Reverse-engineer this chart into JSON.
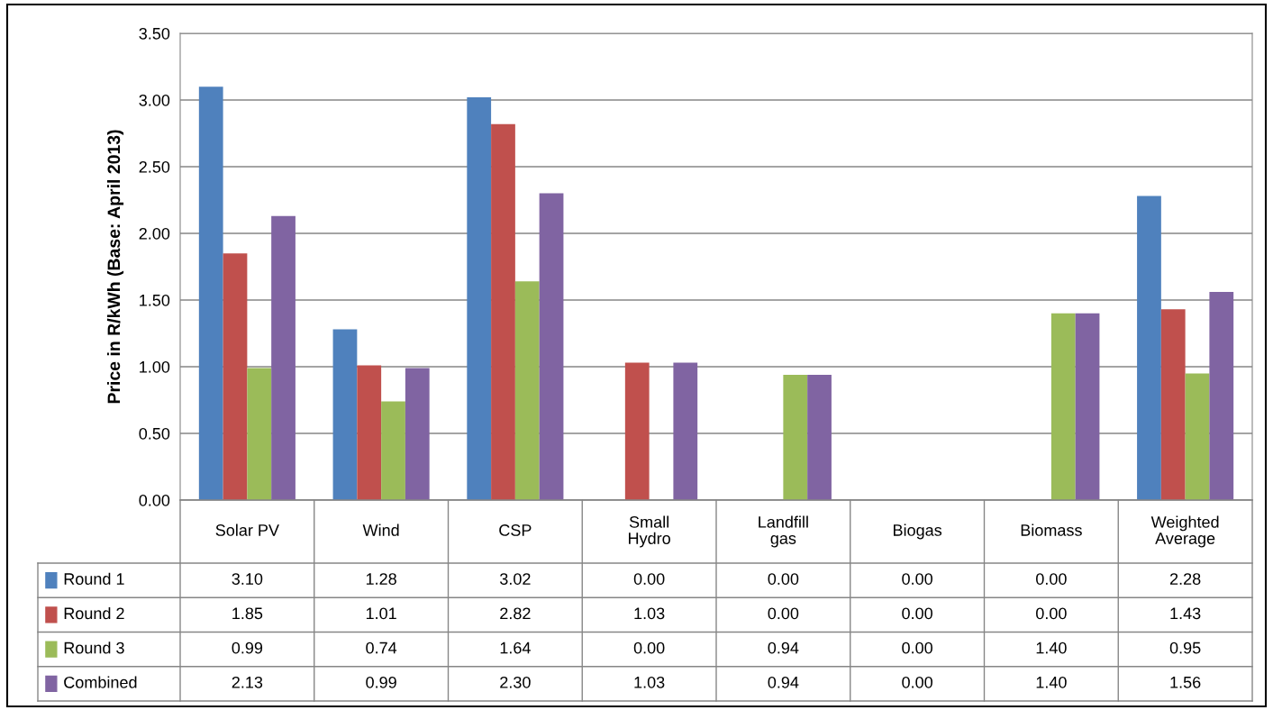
{
  "chart_data": {
    "type": "bar",
    "ylabel": "Price in R/kWh (Base: April 2013)",
    "categories": [
      "Solar PV",
      "Wind",
      "CSP",
      "Small Hydro",
      "Landfill gas",
      "Biogas",
      "Biomass",
      "Weighted Average"
    ],
    "series": [
      {
        "name": "Round 1",
        "color": "#4f81bd",
        "values": [
          3.1,
          1.28,
          3.02,
          0.0,
          0.0,
          0.0,
          0.0,
          2.28
        ],
        "value_labels": [
          "3.10",
          "1.28",
          "3.02",
          "0.00",
          "0.00",
          "0.00",
          "0.00",
          "2.28"
        ]
      },
      {
        "name": "Round 2",
        "color": "#c0504d",
        "values": [
          1.85,
          1.01,
          2.82,
          1.03,
          0.0,
          0.0,
          0.0,
          1.43
        ],
        "value_labels": [
          "1.85",
          "1.01",
          "2.82",
          "1.03",
          "0.00",
          "0.00",
          "0.00",
          "1.43"
        ]
      },
      {
        "name": "Round 3",
        "color": "#9bbb59",
        "values": [
          0.99,
          0.74,
          1.64,
          0.0,
          0.94,
          0.0,
          1.4,
          0.95
        ],
        "value_labels": [
          "0.99",
          "0.74",
          "1.64",
          "0.00",
          "0.94",
          "0.00",
          "1.40",
          "0.95"
        ]
      },
      {
        "name": "Combined",
        "color": "#8064a2",
        "values": [
          2.13,
          0.99,
          2.3,
          1.03,
          0.94,
          0.0,
          1.4,
          1.56
        ],
        "value_labels": [
          "2.13",
          "0.99",
          "2.30",
          "1.03",
          "0.94",
          "0.00",
          "1.40",
          "1.56"
        ]
      }
    ],
    "ylim": [
      0,
      3.5
    ],
    "yticks": [
      {
        "value": 0,
        "label": "0.00"
      },
      {
        "value": 0.5,
        "label": "0.50"
      },
      {
        "value": 1,
        "label": "1.00"
      },
      {
        "value": 1.5,
        "label": "1.50"
      },
      {
        "value": 2,
        "label": "2.00"
      },
      {
        "value": 2.5,
        "label": "2.50"
      },
      {
        "value": 3,
        "label": "3.00"
      },
      {
        "value": 3.5,
        "label": "3.50"
      }
    ],
    "grid": "y",
    "legend": "bottom"
  }
}
